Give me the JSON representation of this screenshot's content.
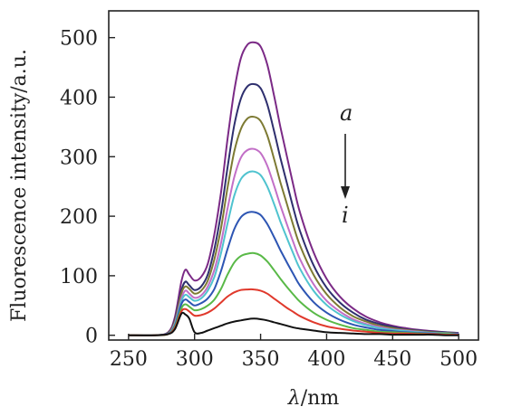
{
  "chart_data": {
    "type": "line",
    "xlabel": {
      "symbol": "λ",
      "unit": "/nm"
    },
    "ylabel": "Fluorescence intensity/a.u.",
    "xlim": [
      235,
      515
    ],
    "ylim": [
      -8,
      545
    ],
    "xticks": [
      250,
      300,
      350,
      400,
      450,
      500
    ],
    "yticks": [
      0,
      100,
      200,
      300,
      400,
      500
    ],
    "grid": false,
    "annotations": {
      "top": "a",
      "bottom": "i"
    },
    "x": [
      250,
      270,
      280,
      285,
      290,
      293,
      296,
      300,
      305,
      310,
      315,
      320,
      325,
      330,
      335,
      340,
      345,
      350,
      355,
      360,
      365,
      370,
      375,
      380,
      390,
      400,
      410,
      420,
      430,
      440,
      450,
      460,
      470,
      480,
      490,
      500
    ],
    "series": [
      {
        "color": "#7b2a86",
        "values": [
          0,
          0,
          5,
          30,
          90,
          110,
          102,
          92,
          98,
          120,
          170,
          240,
          330,
          410,
          465,
          488,
          492,
          485,
          455,
          405,
          350,
          300,
          250,
          205,
          140,
          95,
          65,
          45,
          31,
          22,
          16,
          12,
          9,
          7,
          5,
          4
        ]
      },
      {
        "color": "#2e2f6e",
        "values": [
          0,
          0,
          4,
          25,
          75,
          90,
          84,
          76,
          82,
          102,
          145,
          205,
          282,
          352,
          397,
          418,
          422,
          415,
          388,
          345,
          298,
          255,
          212,
          174,
          118,
          80,
          55,
          38,
          26,
          19,
          14,
          10,
          8,
          6,
          5,
          4
        ]
      },
      {
        "color": "#7d7a33",
        "values": [
          0,
          0,
          4,
          23,
          70,
          82,
          78,
          70,
          75,
          92,
          128,
          180,
          248,
          308,
          346,
          364,
          367,
          360,
          336,
          298,
          257,
          220,
          183,
          150,
          102,
          69,
          47,
          32,
          23,
          16,
          12,
          9,
          7,
          5,
          4,
          3
        ]
      },
      {
        "color": "#c26fc7",
        "values": [
          0,
          0,
          3,
          20,
          62,
          75,
          70,
          63,
          67,
          82,
          110,
          155,
          213,
          265,
          298,
          311,
          313,
          306,
          285,
          253,
          218,
          186,
          155,
          127,
          86,
          58,
          40,
          27,
          19,
          14,
          10,
          8,
          6,
          4,
          3,
          3
        ]
      },
      {
        "color": "#4fc3cf",
        "values": [
          0,
          0,
          3,
          18,
          57,
          68,
          64,
          58,
          62,
          75,
          98,
          138,
          188,
          234,
          262,
          273,
          275,
          269,
          250,
          222,
          191,
          163,
          136,
          111,
          75,
          51,
          35,
          24,
          17,
          12,
          9,
          7,
          5,
          4,
          3,
          2
        ]
      },
      {
        "color": "#2d55b3",
        "values": [
          0,
          0,
          3,
          16,
          52,
          60,
          56,
          50,
          54,
          62,
          78,
          108,
          145,
          178,
          198,
          206,
          207,
          202,
          187,
          166,
          143,
          122,
          102,
          83,
          56,
          38,
          26,
          18,
          13,
          9,
          7,
          5,
          4,
          3,
          2,
          2
        ]
      },
      {
        "color": "#59b947",
        "values": [
          0,
          0,
          2,
          14,
          45,
          52,
          48,
          42,
          44,
          50,
          60,
          78,
          102,
          122,
          133,
          137,
          138,
          134,
          124,
          110,
          95,
          81,
          68,
          56,
          38,
          26,
          18,
          12,
          9,
          6,
          5,
          4,
          3,
          2,
          2,
          1
        ]
      },
      {
        "color": "#e0392c",
        "values": [
          0,
          0,
          2,
          12,
          40,
          44,
          40,
          33,
          34,
          38,
          45,
          55,
          65,
          72,
          76,
          77,
          77,
          75,
          70,
          62,
          54,
          46,
          39,
          32,
          22,
          15,
          11,
          8,
          6,
          4,
          3,
          3,
          2,
          2,
          1,
          1
        ]
      },
      {
        "color": "#111111",
        "values": [
          0,
          0,
          2,
          10,
          36,
          35,
          28,
          5,
          4,
          8,
          12,
          16,
          20,
          23,
          25,
          27,
          28,
          27,
          25,
          22,
          19,
          16,
          13,
          11,
          8,
          5,
          4,
          3,
          2,
          2,
          1,
          1,
          1,
          1,
          0,
          0
        ]
      }
    ]
  }
}
